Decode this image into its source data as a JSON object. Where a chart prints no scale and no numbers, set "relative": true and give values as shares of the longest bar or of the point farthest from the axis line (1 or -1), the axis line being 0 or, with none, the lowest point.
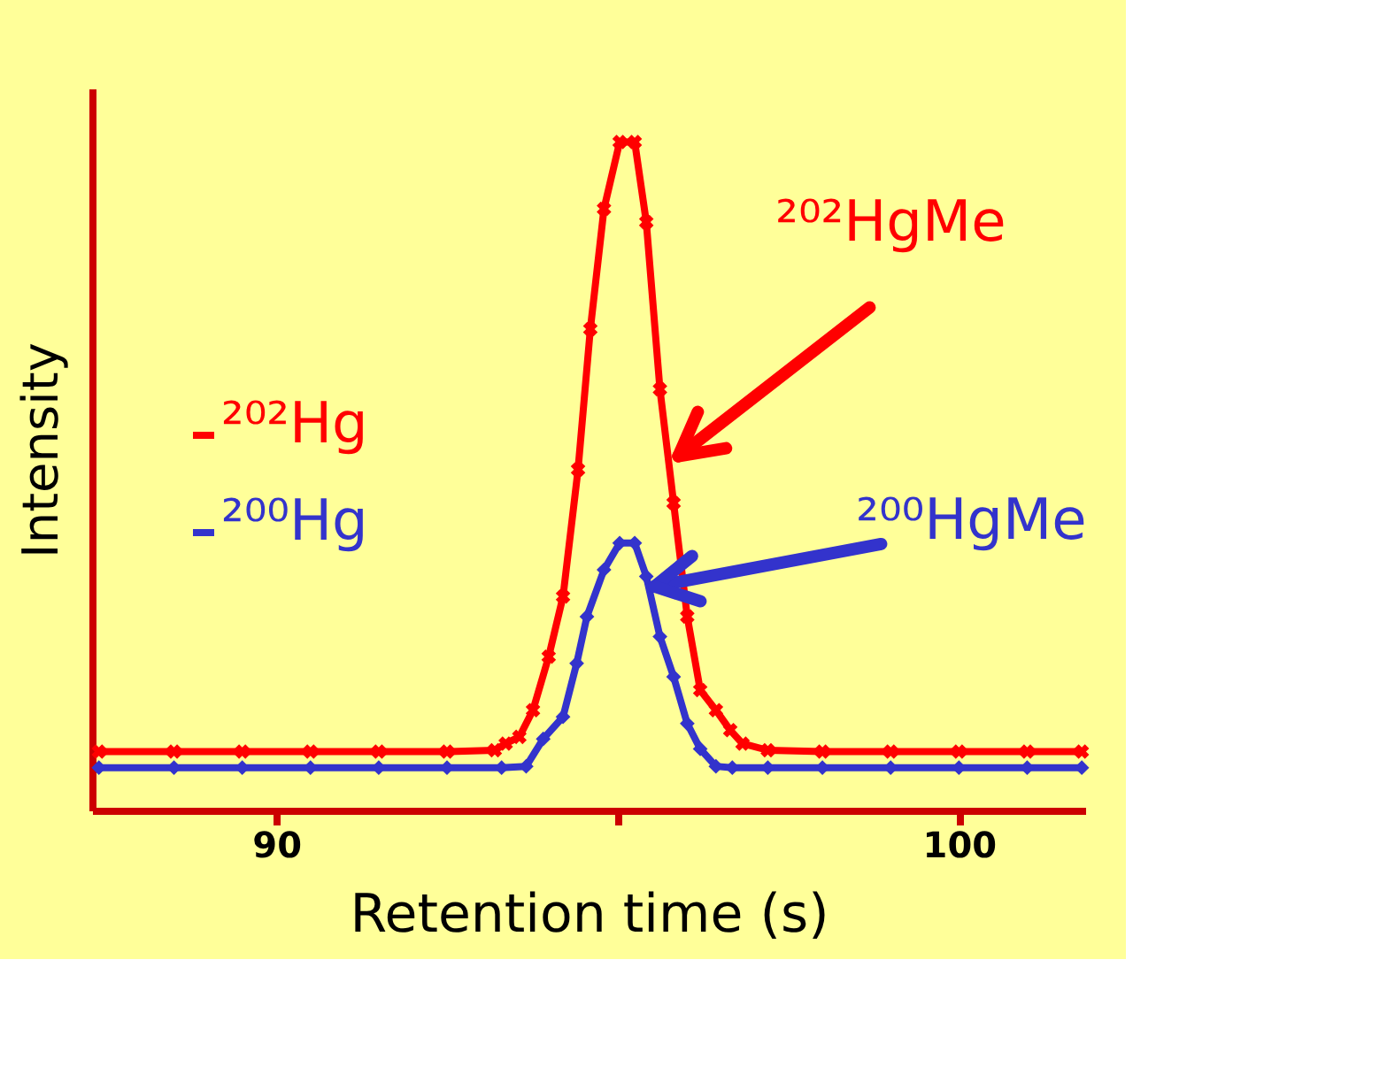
{
  "chart_data": {
    "type": "line",
    "xlabel": "Retention time (s)",
    "ylabel": "Intensity",
    "relative": true,
    "xlim": [
      87.3,
      101.85
    ],
    "xticks": [
      90,
      {
        "value": 95,
        "label": null
      },
      100
    ],
    "grid": false,
    "legend": "left",
    "line_style": "solid",
    "series": [
      {
        "name": "²⁰²Hg",
        "color": "#ff0000",
        "marker": "cross",
        "x": [
          87.4,
          88.5,
          89.5,
          90.5,
          91.5,
          92.5,
          93.2,
          93.36,
          93.56,
          93.76,
          93.99,
          94.2,
          94.42,
          94.6,
          94.8,
          95.03,
          95.25,
          95.42,
          95.62,
          95.82,
          96.02,
          96.21,
          96.44,
          96.65,
          96.83,
          97.2,
          98,
          99,
          100,
          101,
          101.8
        ],
        "values": [
          0.088,
          0.088,
          0.088,
          0.088,
          0.088,
          0.088,
          0.09,
          0.1,
          0.11,
          0.15,
          0.23,
          0.32,
          0.51,
          0.72,
          0.9,
          1.0,
          1.0,
          0.88,
          0.63,
          0.46,
          0.29,
          0.18,
          0.15,
          0.12,
          0.1,
          0.09,
          0.088,
          0.088,
          0.088,
          0.088,
          0.088
        ]
      },
      {
        "name": "²⁰⁰Hg",
        "color": "#3333cc",
        "marker": "diamond",
        "x": [
          87.4,
          88.5,
          89.5,
          90.5,
          91.5,
          92.5,
          93.3,
          93.66,
          93.91,
          94.2,
          94.4,
          94.55,
          94.8,
          95.03,
          95.25,
          95.42,
          95.62,
          95.82,
          96.02,
          96.21,
          96.44,
          96.68,
          97.2,
          98,
          99,
          100,
          101,
          101.8
        ],
        "values": [
          0.064,
          0.064,
          0.064,
          0.064,
          0.064,
          0.064,
          0.064,
          0.066,
          0.107,
          0.14,
          0.22,
          0.29,
          0.36,
          0.4,
          0.4,
          0.35,
          0.26,
          0.2,
          0.13,
          0.092,
          0.066,
          0.064,
          0.064,
          0.064,
          0.064,
          0.064,
          0.064,
          0.064
        ]
      }
    ],
    "annotations": [
      {
        "text": "²⁰²HgMe",
        "x": 95.89,
        "y": 0.53
      },
      {
        "text": "²⁰⁰HgMe",
        "x": 95.54,
        "y": 0.335
      }
    ]
  }
}
